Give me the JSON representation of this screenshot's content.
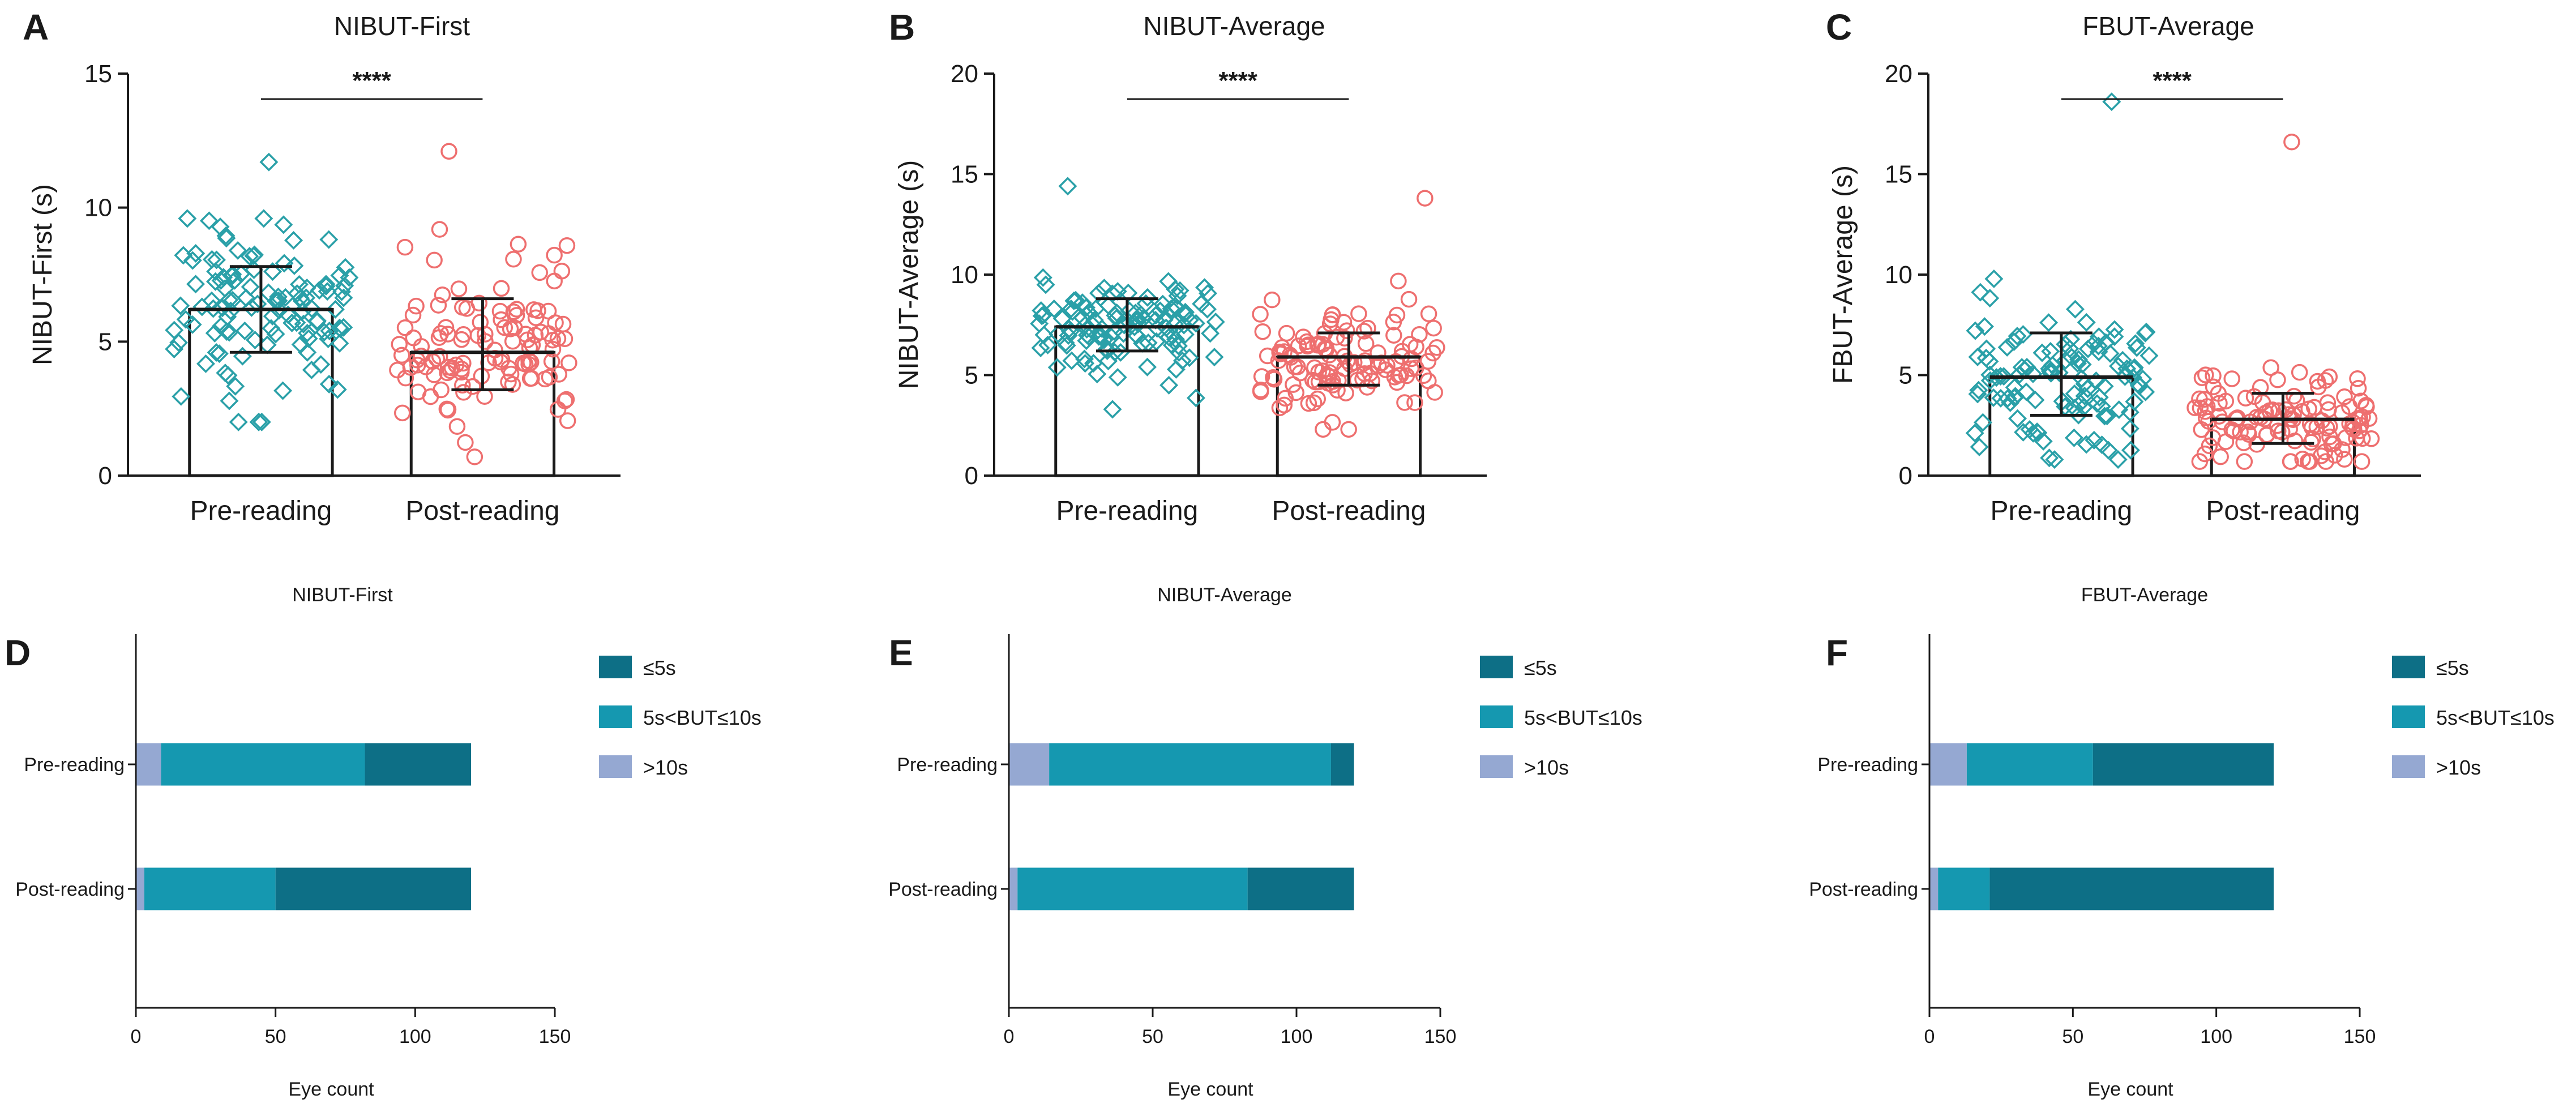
{
  "colors": {
    "pre": "#2aa0a8",
    "post": "#ee6f6f",
    "le5": "#0d6f86",
    "mid": "#1598b0",
    "gt10": "#95a8d2"
  },
  "chart_data": [
    {
      "panel": "A",
      "type": "scatter",
      "title": "NIBUT-First",
      "ylabel": "NIBUT-First (s)",
      "ylim": [
        0,
        15
      ],
      "yticks": [
        "0",
        "5",
        "10",
        "15"
      ],
      "categories": [
        "Pre-reading",
        "Post-reading"
      ],
      "series": [
        {
          "name": "Pre-reading",
          "marker": "diamond",
          "mean": 6.2,
          "sd_low": 4.6,
          "sd_high": 7.8,
          "min": 2.0,
          "max": 11.7
        },
        {
          "name": "Post-reading",
          "marker": "circle",
          "mean": 4.6,
          "sd_low": 3.2,
          "sd_high": 6.6,
          "min": 0.7,
          "max": 12.1
        }
      ],
      "significance": "****"
    },
    {
      "panel": "B",
      "type": "scatter",
      "title": "NIBUT-Average",
      "ylabel": "NIBUT-Average (s)",
      "ylim": [
        0,
        20
      ],
      "yticks": [
        "0",
        "5",
        "10",
        "15",
        "20"
      ],
      "categories": [
        "Pre-reading",
        "Post-reading"
      ],
      "series": [
        {
          "name": "Pre-reading",
          "marker": "diamond",
          "mean": 7.4,
          "sd_low": 6.2,
          "sd_high": 8.8,
          "min": 3.3,
          "max": 14.4
        },
        {
          "name": "Post-reading",
          "marker": "circle",
          "mean": 5.9,
          "sd_low": 4.5,
          "sd_high": 7.1,
          "min": 2.3,
          "max": 13.8
        }
      ],
      "significance": "****"
    },
    {
      "panel": "C",
      "type": "scatter",
      "title": "FBUT-Average",
      "ylabel": "FBUT-Average (s)",
      "ylim": [
        0,
        20
      ],
      "yticks": [
        "0",
        "5",
        "10",
        "15",
        "20"
      ],
      "categories": [
        "Pre-reading",
        "Post-reading"
      ],
      "series": [
        {
          "name": "Pre-reading",
          "marker": "diamond",
          "mean": 4.9,
          "sd_low": 3.0,
          "sd_high": 7.1,
          "min": 0.8,
          "max": 18.6
        },
        {
          "name": "Post-reading",
          "marker": "circle",
          "mean": 2.8,
          "sd_low": 1.6,
          "sd_high": 4.1,
          "min": 0.7,
          "max": 16.6
        }
      ],
      "significance": "****"
    },
    {
      "panel": "D",
      "type": "bar",
      "orientation": "horizontal",
      "stacked": true,
      "title": "NIBUT-First",
      "xlabel": "Eye count",
      "xlim": [
        0,
        150
      ],
      "xticks": [
        "0",
        "50",
        "100",
        "150"
      ],
      "categories": [
        "Pre-reading",
        "Post-reading"
      ],
      "series": [
        {
          "name": ">10s",
          "values": [
            9,
            3
          ]
        },
        {
          "name": "5s<BUT≤10s",
          "values": [
            73,
            47
          ]
        },
        {
          "name": "≤5s",
          "values": [
            38,
            70
          ]
        }
      ],
      "legend": [
        "≤5s",
        "5s<BUT≤10s",
        ">10s"
      ]
    },
    {
      "panel": "E",
      "type": "bar",
      "orientation": "horizontal",
      "stacked": true,
      "title": "NIBUT-Average",
      "xlabel": "Eye count",
      "xlim": [
        0,
        150
      ],
      "xticks": [
        "0",
        "50",
        "100",
        "150"
      ],
      "categories": [
        "Pre-reading",
        "Post-reading"
      ],
      "series": [
        {
          "name": ">10s",
          "values": [
            14,
            3
          ]
        },
        {
          "name": "5s<BUT≤10s",
          "values": [
            98,
            80
          ]
        },
        {
          "name": "≤5s",
          "values": [
            8,
            37
          ]
        }
      ],
      "legend": [
        "≤5s",
        "5s<BUT≤10s",
        ">10s"
      ]
    },
    {
      "panel": "F",
      "type": "bar",
      "orientation": "horizontal",
      "stacked": true,
      "title": "FBUT-Average",
      "xlabel": "Eye count",
      "xlim": [
        0,
        150
      ],
      "xticks": [
        "0",
        "50",
        "100",
        "150"
      ],
      "categories": [
        "Pre-reading",
        "Post-reading"
      ],
      "series": [
        {
          "name": ">10s",
          "values": [
            13,
            3
          ]
        },
        {
          "name": "5s<BUT≤10s",
          "values": [
            44,
            18
          ]
        },
        {
          "name": "≤5s",
          "values": [
            63,
            99
          ]
        }
      ],
      "legend": [
        "≤5s",
        "5s<BUT≤10s",
        ">10s"
      ]
    }
  ]
}
